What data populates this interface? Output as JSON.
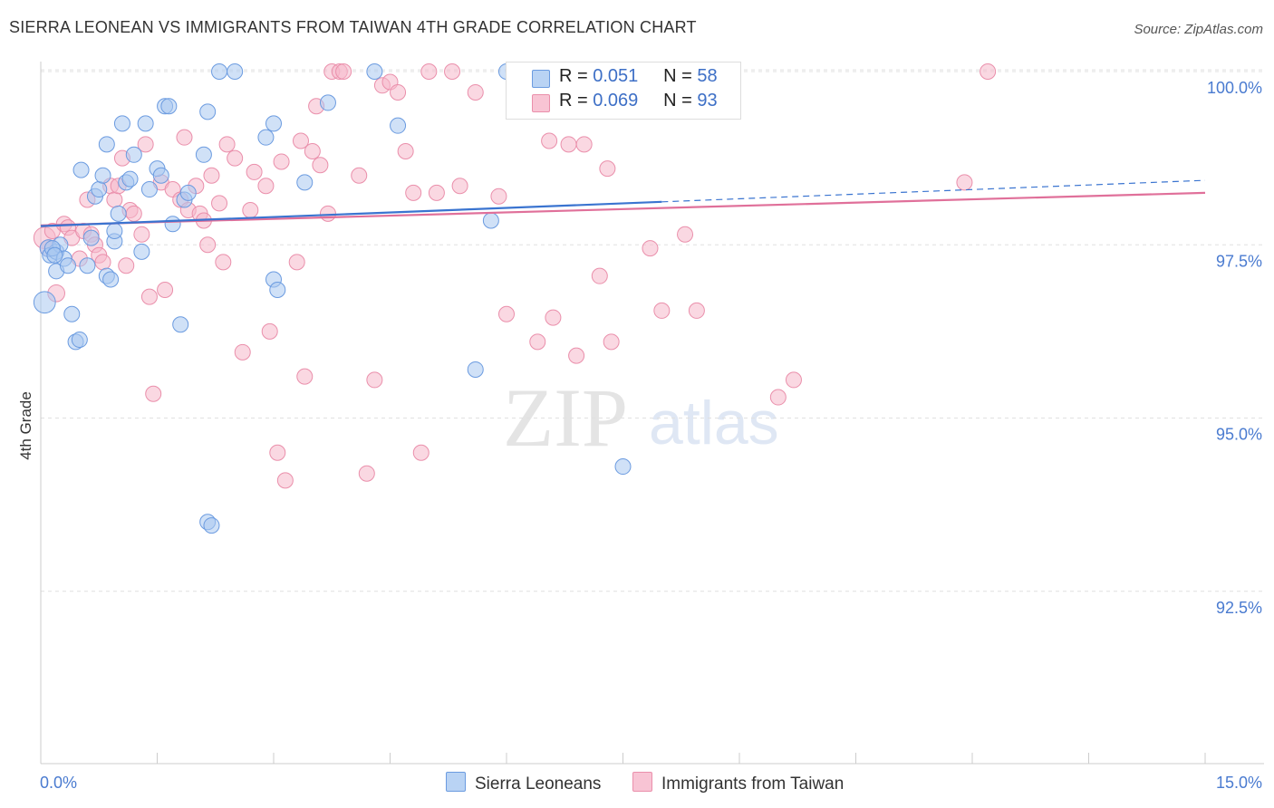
{
  "title": "SIERRA LEONEAN VS IMMIGRANTS FROM TAIWAN 4TH GRADE CORRELATION CHART",
  "source": "Source: ZipAtlas.com",
  "watermark": {
    "zip": "ZIP",
    "atlas": "atlas"
  },
  "legend": {
    "series1": {
      "r_label": "R = ",
      "r_value": "0.051",
      "n_label": "N = ",
      "n_value": "58"
    },
    "series2": {
      "r_label": "R = ",
      "r_value": "0.069",
      "n_label": "N = ",
      "n_value": "93"
    }
  },
  "bottom_legend": {
    "series1": "Sierra Leoneans",
    "series2": "Immigrants from Taiwan"
  },
  "colors": {
    "blue_fill": "#a9c8f0",
    "blue_stroke": "#6b9be0",
    "blue_line": "#3a74d0",
    "pink_fill": "#f6b8cb",
    "pink_stroke": "#ea8fab",
    "pink_line": "#e0709a",
    "tick_label": "#4a7bd0",
    "grid": "#e0e0e0"
  },
  "chart_data": {
    "type": "scatter",
    "title": "SIERRA LEONEAN VS IMMIGRANTS FROM TAIWAN 4TH GRADE CORRELATION CHART",
    "xlabel": "",
    "ylabel": "4th Grade",
    "xlim": [
      0,
      15
    ],
    "ylim": [
      90.0,
      100.25
    ],
    "x_tick_labels": [
      {
        "value": 0,
        "label": "0.0%"
      },
      {
        "value": 15,
        "label": "15.0%"
      }
    ],
    "y_ticks": [
      {
        "value": 100,
        "label": "100.0%"
      },
      {
        "value": 97.5,
        "label": "97.5%"
      },
      {
        "value": 95,
        "label": "95.0%"
      },
      {
        "value": 92.5,
        "label": "92.5%"
      }
    ],
    "x_minor_ticks": [
      0,
      1.5,
      3,
      4.5,
      6,
      7.5,
      9,
      10.5,
      12,
      13.5,
      15
    ],
    "series": [
      {
        "name": "Sierra Leoneans",
        "R": 0.051,
        "N": 58,
        "trend": {
          "x0": 0,
          "y0": 97.77,
          "x1": 8.0,
          "y1": 98.12,
          "dashed_to_x": 15,
          "dashed_to_y": 98.43
        },
        "points": [
          [
            0.05,
            96.67,
            14
          ],
          [
            0.1,
            97.45,
            11
          ],
          [
            0.12,
            97.35,
            10
          ],
          [
            0.2,
            97.4,
            10
          ],
          [
            0.25,
            97.5,
            10
          ],
          [
            0.2,
            97.12,
            10
          ],
          [
            0.3,
            97.3,
            10
          ],
          [
            0.35,
            97.2,
            10
          ],
          [
            0.4,
            96.5,
            10
          ],
          [
            0.45,
            96.1,
            10
          ],
          [
            0.5,
            96.13,
            10
          ],
          [
            0.52,
            98.58,
            10
          ],
          [
            0.6,
            97.2,
            10
          ],
          [
            0.65,
            97.6,
            10
          ],
          [
            0.7,
            98.2,
            10
          ],
          [
            0.75,
            98.3,
            10
          ],
          [
            0.8,
            98.5,
            10
          ],
          [
            0.85,
            97.05,
            10
          ],
          [
            0.9,
            97.0,
            10
          ],
          [
            0.95,
            97.55,
            10
          ],
          [
            0.95,
            97.7,
            10
          ],
          [
            1.0,
            97.95,
            10
          ],
          [
            1.05,
            99.25,
            10
          ],
          [
            0.85,
            98.95,
            10
          ],
          [
            1.1,
            98.4,
            10
          ],
          [
            1.15,
            98.45,
            10
          ],
          [
            1.2,
            98.8,
            10
          ],
          [
            1.3,
            97.4,
            10
          ],
          [
            1.35,
            99.25,
            10
          ],
          [
            1.4,
            98.3,
            10
          ],
          [
            1.5,
            98.6,
            10
          ],
          [
            1.55,
            98.5,
            10
          ],
          [
            1.6,
            99.5,
            10
          ],
          [
            1.65,
            99.5,
            10
          ],
          [
            1.7,
            97.8,
            10
          ],
          [
            1.85,
            98.15,
            10
          ],
          [
            1.8,
            96.35,
            10
          ],
          [
            1.9,
            98.25,
            10
          ],
          [
            2.1,
            98.8,
            10
          ],
          [
            2.15,
            93.5,
            10
          ],
          [
            2.2,
            93.45,
            10
          ],
          [
            2.15,
            99.42,
            10
          ],
          [
            2.3,
            100.0,
            10
          ],
          [
            2.5,
            100.0,
            10
          ],
          [
            2.9,
            99.05,
            10
          ],
          [
            3.0,
            97.0,
            10
          ],
          [
            3.05,
            96.85,
            10
          ],
          [
            3.0,
            99.25,
            10
          ],
          [
            3.4,
            98.4,
            10
          ],
          [
            3.7,
            99.55,
            10
          ],
          [
            4.3,
            100.0,
            10
          ],
          [
            4.6,
            99.22,
            10
          ],
          [
            5.8,
            97.85,
            10
          ],
          [
            5.6,
            95.7,
            10
          ],
          [
            6.0,
            100.0,
            10
          ],
          [
            7.5,
            94.3,
            10
          ],
          [
            0.15,
            97.45,
            10
          ],
          [
            0.18,
            97.35,
            10
          ]
        ]
      },
      {
        "name": "Immigrants from Taiwan",
        "R": 0.069,
        "N": 93,
        "trend": {
          "x0": 0,
          "y0": 97.78,
          "x1": 15,
          "y1": 98.25
        },
        "points": [
          [
            0.05,
            97.6,
            14
          ],
          [
            0.1,
            97.45,
            11
          ],
          [
            0.15,
            97.7,
            10
          ],
          [
            0.2,
            96.8,
            11
          ],
          [
            0.3,
            97.8,
            10
          ],
          [
            0.35,
            97.75,
            10
          ],
          [
            0.4,
            97.6,
            10
          ],
          [
            0.5,
            97.3,
            10
          ],
          [
            0.55,
            97.7,
            10
          ],
          [
            0.6,
            98.15,
            10
          ],
          [
            0.65,
            97.65,
            10
          ],
          [
            0.7,
            97.5,
            10
          ],
          [
            0.75,
            97.35,
            10
          ],
          [
            0.8,
            97.25,
            10
          ],
          [
            0.9,
            98.35,
            10
          ],
          [
            0.95,
            98.15,
            10
          ],
          [
            1.0,
            98.35,
            10
          ],
          [
            1.05,
            98.75,
            10
          ],
          [
            1.1,
            97.2,
            10
          ],
          [
            1.15,
            98.0,
            10
          ],
          [
            1.2,
            97.95,
            10
          ],
          [
            1.3,
            97.65,
            10
          ],
          [
            1.35,
            98.95,
            10
          ],
          [
            1.4,
            96.75,
            10
          ],
          [
            1.45,
            95.35,
            10
          ],
          [
            1.55,
            98.4,
            10
          ],
          [
            1.6,
            96.85,
            10
          ],
          [
            1.7,
            98.3,
            10
          ],
          [
            1.8,
            98.15,
            10
          ],
          [
            1.85,
            99.05,
            10
          ],
          [
            1.9,
            98.0,
            10
          ],
          [
            2.0,
            98.35,
            10
          ],
          [
            2.05,
            97.95,
            10
          ],
          [
            2.1,
            97.85,
            10
          ],
          [
            2.15,
            97.5,
            10
          ],
          [
            2.2,
            98.5,
            10
          ],
          [
            2.3,
            98.1,
            10
          ],
          [
            2.35,
            97.25,
            10
          ],
          [
            2.4,
            98.95,
            10
          ],
          [
            2.5,
            98.75,
            10
          ],
          [
            2.6,
            95.95,
            10
          ],
          [
            2.7,
            98.0,
            10
          ],
          [
            2.75,
            98.55,
            10
          ],
          [
            2.9,
            98.35,
            10
          ],
          [
            2.95,
            96.25,
            10
          ],
          [
            3.05,
            94.5,
            10
          ],
          [
            3.1,
            98.7,
            10
          ],
          [
            3.15,
            94.1,
            10
          ],
          [
            3.3,
            97.25,
            10
          ],
          [
            3.35,
            99.0,
            10
          ],
          [
            3.4,
            95.6,
            10
          ],
          [
            3.5,
            98.85,
            10
          ],
          [
            3.55,
            99.5,
            10
          ],
          [
            3.6,
            98.65,
            10
          ],
          [
            3.7,
            97.95,
            10
          ],
          [
            3.75,
            100.0,
            10
          ],
          [
            3.85,
            100.0,
            10
          ],
          [
            3.9,
            100.0,
            10
          ],
          [
            4.1,
            98.5,
            10
          ],
          [
            4.2,
            94.2,
            10
          ],
          [
            4.3,
            95.55,
            10
          ],
          [
            4.4,
            99.8,
            10
          ],
          [
            4.5,
            99.85,
            10
          ],
          [
            4.6,
            99.7,
            10
          ],
          [
            4.7,
            98.85,
            10
          ],
          [
            4.8,
            98.25,
            10
          ],
          [
            4.9,
            94.5,
            10
          ],
          [
            5.0,
            100.0,
            10
          ],
          [
            5.1,
            98.25,
            10
          ],
          [
            5.3,
            100.0,
            10
          ],
          [
            5.4,
            98.35,
            10
          ],
          [
            5.6,
            99.7,
            10
          ],
          [
            5.9,
            98.2,
            10
          ],
          [
            6.0,
            96.5,
            10
          ],
          [
            6.2,
            100.0,
            10
          ],
          [
            6.4,
            96.1,
            10
          ],
          [
            6.55,
            99.0,
            10
          ],
          [
            6.6,
            96.45,
            10
          ],
          [
            6.8,
            98.95,
            10
          ],
          [
            6.9,
            95.9,
            10
          ],
          [
            7.0,
            98.95,
            10
          ],
          [
            7.2,
            97.05,
            10
          ],
          [
            7.3,
            98.6,
            10
          ],
          [
            7.35,
            96.1,
            10
          ],
          [
            7.5,
            100.0,
            10
          ],
          [
            7.85,
            97.45,
            10
          ],
          [
            8.0,
            96.55,
            10
          ],
          [
            8.3,
            97.65,
            10
          ],
          [
            8.45,
            96.55,
            10
          ],
          [
            9.5,
            95.3,
            10
          ],
          [
            9.7,
            95.55,
            10
          ],
          [
            11.9,
            98.4,
            10
          ],
          [
            12.2,
            100.0,
            10
          ]
        ]
      }
    ]
  }
}
